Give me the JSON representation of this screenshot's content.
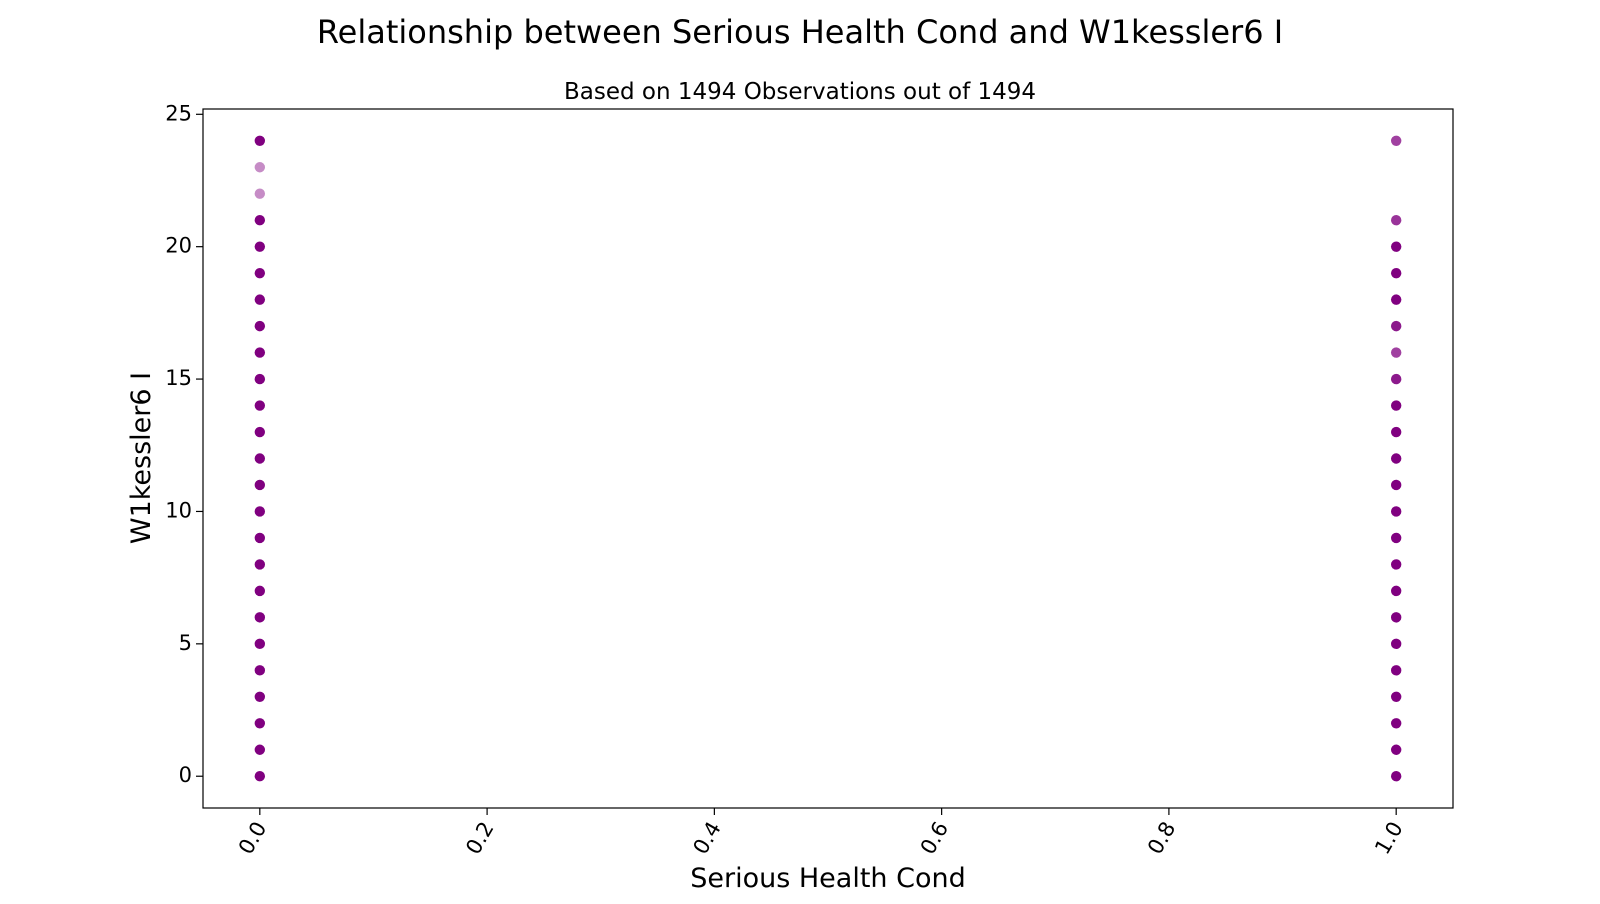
{
  "chart_data": {
    "type": "scatter",
    "title": "Relationship between Serious Health Cond and W1kessler6 I",
    "subtitle": "Based on 1494 Observations out of 1494",
    "xlabel": "Serious Health Cond",
    "ylabel": "W1kessler6 I",
    "xlim": [
      -0.05,
      1.05
    ],
    "ylim": [
      -1.2,
      25.2
    ],
    "xticks": [
      0.0,
      0.2,
      0.4,
      0.6,
      0.8,
      1.0
    ],
    "xtick_labels": [
      "0.0",
      "0.2",
      "0.4",
      "0.6",
      "0.8",
      "1.0"
    ],
    "yticks": [
      0,
      5,
      10,
      15,
      20,
      25
    ],
    "ytick_labels": [
      "0",
      "5",
      "10",
      "15",
      "20",
      "25"
    ],
    "grid": false,
    "point_color": "#800080",
    "series": [
      {
        "x": 0,
        "y": [
          0,
          1,
          2,
          3,
          4,
          5,
          6,
          7,
          8,
          9,
          10,
          11,
          12,
          13,
          14,
          15,
          16,
          17,
          18,
          19,
          20,
          21,
          22,
          23,
          24
        ],
        "opacity": [
          1,
          1,
          1,
          1,
          1,
          1,
          1,
          1,
          1,
          1,
          1,
          1,
          1,
          1,
          1,
          1,
          1,
          1,
          1,
          1,
          1,
          1,
          0.45,
          0.45,
          1
        ]
      },
      {
        "x": 1,
        "y": [
          0,
          1,
          2,
          3,
          4,
          5,
          6,
          7,
          8,
          9,
          10,
          11,
          12,
          13,
          14,
          15,
          16,
          17,
          18,
          19,
          20,
          21,
          24
        ],
        "opacity": [
          1,
          1,
          1,
          1,
          1,
          1,
          1,
          1,
          1,
          1,
          1,
          1,
          1,
          1,
          1,
          0.9,
          0.75,
          0.9,
          1,
          1,
          1,
          0.8,
          0.75
        ]
      }
    ]
  }
}
